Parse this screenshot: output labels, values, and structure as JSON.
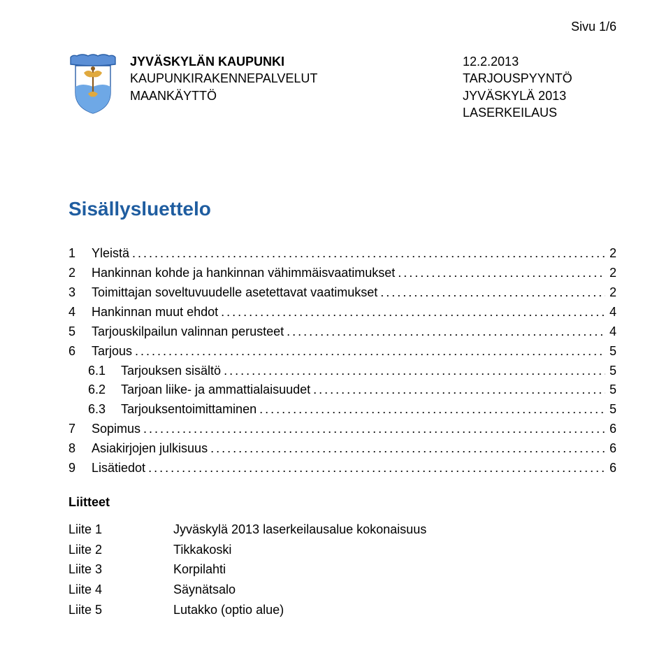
{
  "pageNumber": "Sivu 1/6",
  "header": {
    "left": {
      "l1": "JYVÄSKYLÄN KAUPUNKI",
      "l2": "KAUPUNKIRAKENNEPALVELUT",
      "l3": "MAANKÄYTTÖ"
    },
    "right": {
      "r1": "12.2.2013",
      "r2": "TARJOUSPYYNTÖ",
      "r3": "JYVÄSKYLÄ 2013",
      "r4": "LASERKEILAUS"
    }
  },
  "tocTitle": "Sisällysluettelo",
  "toc": [
    {
      "num": "1",
      "label": "Yleistä",
      "page": "2",
      "level": 0
    },
    {
      "num": "2",
      "label": "Hankinnan kohde ja hankinnan vähimmäisvaatimukset",
      "page": "2",
      "level": 0
    },
    {
      "num": "3",
      "label": "Toimittajan soveltuvuudelle asetettavat vaatimukset",
      "page": "2",
      "level": 0
    },
    {
      "num": "4",
      "label": "Hankinnan muut ehdot",
      "page": "4",
      "level": 0
    },
    {
      "num": "5",
      "label": "Tarjouskilpailun valinnan perusteet",
      "page": "4",
      "level": 0
    },
    {
      "num": "6",
      "label": "Tarjous",
      "page": "5",
      "level": 0
    },
    {
      "num": "6.1",
      "label": "Tarjouksen sisältö",
      "page": "5",
      "level": 1
    },
    {
      "num": "6.2",
      "label": "Tarjoan liike- ja ammattialaisuudet",
      "page": "5",
      "level": 1
    },
    {
      "num": "6.3",
      "label": "Tarjouksentoimittaminen",
      "page": "5",
      "level": 1
    },
    {
      "num": "7",
      "label": "Sopimus",
      "page": "6",
      "level": 0
    },
    {
      "num": "8",
      "label": "Asiakirjojen julkisuus",
      "page": "6",
      "level": 0
    },
    {
      "num": "9",
      "label": "Lisätiedot",
      "page": "6",
      "level": 0
    }
  ],
  "attachmentsTitle": "Liitteet",
  "attachments": [
    {
      "key": "Liite 1",
      "val": "Jyväskylä 2013 laserkeilausalue kokonaisuus"
    },
    {
      "key": "Liite 2",
      "val": "Tikkakoski"
    },
    {
      "key": "Liite 3",
      "val": "Korpilahti"
    },
    {
      "key": "Liite 4",
      "val": "Säynätsalo"
    },
    {
      "key": "Liite 5",
      "val": "Lutakko (optio alue)"
    }
  ],
  "crestColors": {
    "bannerTop": "#5b8fd6",
    "bannerStroke": "#2a5fa7",
    "shieldTop": "#ffffff",
    "shieldBottom": "#6ea8e6",
    "shieldStroke": "#2a5fa7",
    "wings": "#e0a93e",
    "staff": "#8c5b1f"
  }
}
